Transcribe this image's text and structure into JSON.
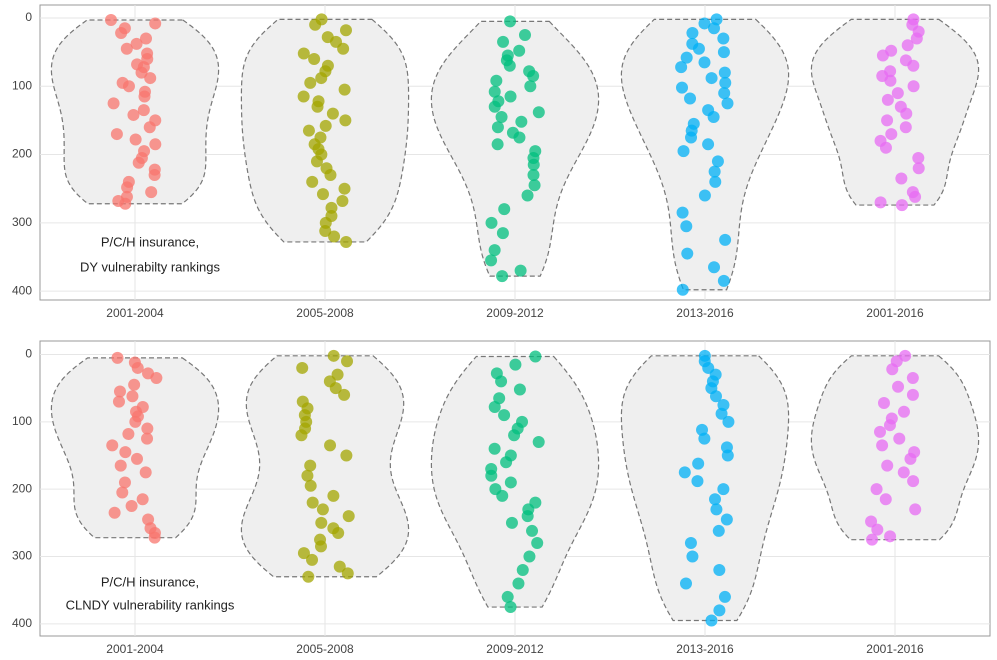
{
  "chart_data": [
    {
      "type": "violin",
      "categories": [
        "2001-2004",
        "2005-2008",
        "2009-2012",
        "2013-2016",
        "2001-2016"
      ],
      "annotation": [
        "P/C/H insurance,",
        "DY vulnerabilty rankings"
      ],
      "ylim": [
        -19,
        413
      ],
      "yticks": [
        0,
        100,
        200,
        300,
        400
      ],
      "y_reversed": true,
      "grid": true,
      "groups": [
        {
          "color": "#F8766D",
          "values": [
            3,
            8,
            15,
            22,
            30,
            38,
            45,
            52,
            60,
            68,
            72,
            80,
            88,
            95,
            100,
            108,
            115,
            125,
            135,
            142,
            150,
            160,
            170,
            178,
            185,
            195,
            205,
            212,
            222,
            230,
            240,
            248,
            255,
            262,
            268,
            272
          ]
        },
        {
          "color": "#A3A500",
          "values": [
            2,
            10,
            18,
            28,
            35,
            45,
            52,
            60,
            70,
            78,
            88,
            95,
            105,
            115,
            122,
            130,
            140,
            150,
            158,
            165,
            175,
            185,
            192,
            200,
            210,
            220,
            230,
            240,
            250,
            258,
            268,
            278,
            290,
            300,
            312,
            320,
            328
          ]
        },
        {
          "color": "#00BF7D",
          "values": [
            5,
            25,
            35,
            48,
            55,
            62,
            70,
            78,
            85,
            92,
            100,
            108,
            115,
            122,
            130,
            138,
            145,
            152,
            160,
            168,
            175,
            185,
            195,
            205,
            215,
            230,
            245,
            260,
            280,
            300,
            315,
            340,
            355,
            370,
            378
          ]
        },
        {
          "color": "#00B0F6",
          "values": [
            2,
            8,
            15,
            22,
            30,
            38,
            45,
            50,
            58,
            65,
            72,
            80,
            88,
            95,
            102,
            110,
            118,
            125,
            135,
            145,
            155,
            165,
            175,
            185,
            195,
            210,
            225,
            240,
            260,
            285,
            305,
            325,
            345,
            365,
            385,
            398
          ]
        },
        {
          "color": "#E76BF3",
          "values": [
            2,
            10,
            20,
            30,
            40,
            48,
            55,
            62,
            70,
            78,
            85,
            92,
            100,
            110,
            120,
            130,
            140,
            150,
            160,
            170,
            180,
            190,
            205,
            220,
            235,
            255,
            262,
            270,
            274
          ]
        }
      ]
    },
    {
      "type": "violin",
      "categories": [
        "2001-2004",
        "2005-2008",
        "2009-2012",
        "2013-2016",
        "2001-2016"
      ],
      "annotation": [
        "P/C/H insurance,",
        "CLNDY vulnerability rankings"
      ],
      "ylim": [
        -20,
        418
      ],
      "yticks": [
        0,
        100,
        200,
        300,
        400
      ],
      "y_reversed": true,
      "grid": true,
      "groups": [
        {
          "color": "#F8766D",
          "values": [
            5,
            12,
            20,
            28,
            35,
            45,
            55,
            62,
            70,
            78,
            85,
            92,
            100,
            110,
            118,
            125,
            135,
            145,
            155,
            165,
            175,
            190,
            205,
            215,
            225,
            235,
            245,
            258,
            265,
            272
          ]
        },
        {
          "color": "#A3A500",
          "values": [
            2,
            10,
            20,
            30,
            40,
            50,
            60,
            70,
            80,
            90,
            100,
            110,
            120,
            135,
            150,
            165,
            180,
            195,
            210,
            220,
            230,
            240,
            250,
            258,
            265,
            275,
            285,
            295,
            305,
            315,
            325,
            330
          ]
        },
        {
          "color": "#00BF7D",
          "values": [
            3,
            15,
            28,
            40,
            52,
            65,
            78,
            90,
            100,
            110,
            120,
            130,
            140,
            150,
            160,
            170,
            180,
            190,
            200,
            210,
            220,
            230,
            240,
            250,
            262,
            280,
            300,
            320,
            340,
            360,
            375
          ]
        },
        {
          "color": "#00B0F6",
          "values": [
            2,
            10,
            20,
            30,
            40,
            50,
            62,
            75,
            88,
            100,
            112,
            125,
            138,
            150,
            162,
            175,
            188,
            200,
            215,
            230,
            245,
            262,
            280,
            300,
            320,
            340,
            360,
            380,
            395
          ]
        },
        {
          "color": "#E76BF3",
          "values": [
            2,
            10,
            22,
            35,
            48,
            60,
            72,
            85,
            95,
            105,
            115,
            125,
            135,
            145,
            155,
            165,
            175,
            188,
            200,
            215,
            230,
            248,
            260,
            270,
            275
          ]
        }
      ]
    }
  ]
}
